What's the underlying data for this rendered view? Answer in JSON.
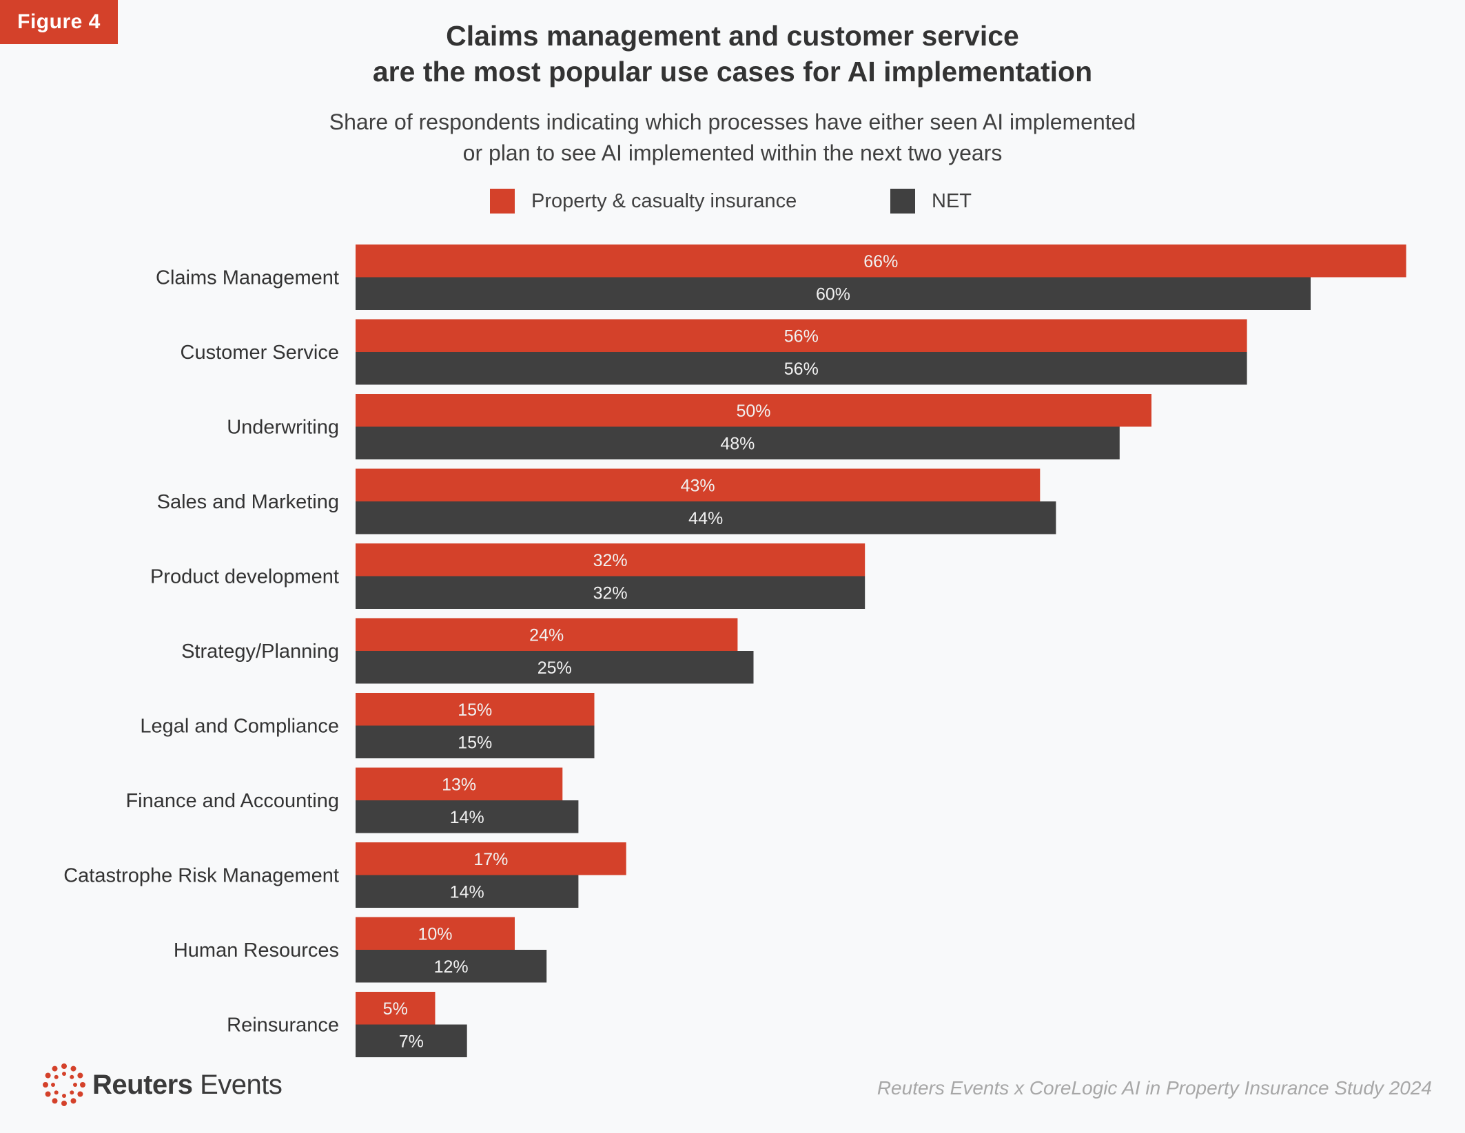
{
  "badge": "Figure 4",
  "title": [
    "Claims management and customer service",
    "are the most popular use cases for AI implementation"
  ],
  "subtitle": [
    "Share of respondents indicating which processes have either seen AI implemented",
    "or plan to see AI implemented within the next two years"
  ],
  "brand": {
    "bold": "Reuters",
    "regular": " Events"
  },
  "source": "Reuters Events x CoreLogic AI in Property Insurance Study 2024",
  "colors": {
    "pc": "#d4412a",
    "net": "#404040",
    "bar_label": "#f1f1f1",
    "category_label": "#333333"
  },
  "chart_data": {
    "type": "bar",
    "orientation": "horizontal",
    "categories": [
      "Claims Management",
      "Customer Service",
      "Underwriting",
      "Sales and Marketing",
      "Product development",
      "Strategy/Planning",
      "Legal and Compliance",
      "Finance and Accounting",
      "Catastrophe Risk Management",
      "Human Resources",
      "Reinsurance"
    ],
    "series": [
      {
        "name": "Property & casualty insurance",
        "values": [
          66,
          56,
          50,
          43,
          32,
          24,
          15,
          13,
          17,
          10,
          5
        ]
      },
      {
        "name": "NET",
        "values": [
          60,
          56,
          48,
          44,
          32,
          25,
          15,
          14,
          14,
          12,
          7
        ]
      }
    ],
    "value_format": "percent",
    "xlim": [
      0,
      66
    ],
    "legend_position": "top",
    "grid": false,
    "data_labels": true
  }
}
